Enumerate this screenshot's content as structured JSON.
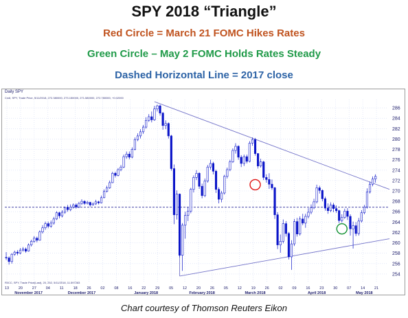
{
  "header": {
    "title": "SPY 2018 “Triangle”",
    "line1": "Red Circle = March 21 FOMC Hikes Rates",
    "line2": "Green Circle – May 2 FOMC Holds Rates Steady",
    "line3": "Dashed Horizontal Line = 2017 close"
  },
  "panel": {
    "label": "Daily SPY",
    "info": "Cndl, SPY, Trade Price, 5/11/2018, 272.380000, 273.150000, 271.580000, 272.780000, +0.02000",
    "footer": "Rl/CC, SPY, Trade Price(Last), 20, 252, 5/11/2018, 11.597283"
  },
  "credit": "Chart courtesy of Thomson Reuters Eikon",
  "colors": {
    "up": "#ffffff",
    "down": "#0a14c8",
    "wick": "#0a14c8",
    "trend": "#7272c8",
    "dashed": "#2a2a9a",
    "grid": "#cfd8f4",
    "red_circle": "#e01010",
    "green_circle": "#109030"
  },
  "chart_data": {
    "type": "candlestick",
    "y_ticks": [
      254,
      256,
      258,
      260,
      262,
      264,
      266,
      268,
      270,
      272,
      274,
      276,
      278,
      280,
      282,
      284,
      286
    ],
    "ylim": [
      252.4,
      287.6
    ],
    "x_day_labels": [
      "13",
      "20",
      "27",
      "04",
      "11",
      "18",
      "26",
      "02",
      "08",
      "16",
      "22",
      "29",
      "05",
      "12",
      "20",
      "26",
      "05",
      "12",
      "19",
      "26",
      "02",
      "09",
      "16",
      "23",
      "30",
      "07",
      "14",
      "21"
    ],
    "month_labels": [
      {
        "label": "November 2017",
        "index": 8
      },
      {
        "label": "December 2017",
        "index": 27
      },
      {
        "label": "January 2018",
        "index": 50
      },
      {
        "label": "February 2018",
        "index": 70
      },
      {
        "label": "March 2018",
        "index": 89
      },
      {
        "label": "April 2018",
        "index": 111
      },
      {
        "label": "May 2018",
        "index": 128
      }
    ],
    "candles": [
      [
        257.2,
        257.1,
        258.2,
        256.7
      ],
      [
        257.1,
        256.4,
        257.4,
        255.8
      ],
      [
        256.4,
        257.8,
        258.0,
        256.0
      ],
      [
        257.8,
        258.2,
        258.5,
        257.5
      ],
      [
        258.2,
        258.0,
        258.6,
        257.6
      ],
      [
        258.0,
        258.6,
        259.0,
        257.8
      ],
      [
        258.6,
        258.8,
        259.2,
        258.3
      ],
      [
        258.8,
        258.4,
        259.1,
        258.1
      ],
      [
        258.4,
        259.6,
        259.9,
        258.3
      ],
      [
        259.6,
        260.3,
        260.6,
        259.3
      ],
      [
        260.3,
        260.9,
        261.3,
        260.0
      ],
      [
        260.9,
        260.5,
        261.2,
        260.1
      ],
      [
        260.5,
        262.1,
        262.4,
        260.4
      ],
      [
        262.1,
        262.9,
        263.4,
        261.8
      ],
      [
        262.9,
        263.7,
        264.1,
        262.5
      ],
      [
        263.7,
        263.2,
        264.1,
        262.8
      ],
      [
        263.2,
        263.8,
        264.3,
        262.9
      ],
      [
        263.8,
        264.6,
        265.0,
        263.5
      ],
      [
        264.6,
        265.8,
        266.1,
        264.4
      ],
      [
        265.8,
        265.2,
        266.0,
        264.7
      ],
      [
        265.2,
        265.9,
        266.3,
        264.9
      ],
      [
        265.9,
        266.8,
        267.0,
        265.6
      ],
      [
        266.8,
        266.4,
        267.3,
        266.0
      ],
      [
        266.4,
        266.9,
        267.4,
        266.1
      ],
      [
        266.9,
        267.3,
        267.6,
        266.6
      ],
      [
        267.3,
        266.9,
        267.6,
        266.6
      ],
      [
        266.9,
        267.6,
        267.9,
        266.7
      ],
      [
        267.6,
        268.0,
        268.4,
        267.3
      ],
      [
        268.0,
        267.6,
        268.2,
        267.3
      ],
      [
        267.6,
        267.8,
        268.1,
        267.4
      ],
      [
        267.8,
        267.3,
        267.9,
        267.0
      ],
      [
        267.3,
        267.5,
        267.8,
        267.2
      ],
      [
        267.5,
        267.9,
        268.3,
        267.3
      ],
      [
        267.9,
        267.7,
        268.1,
        267.4
      ],
      [
        267.7,
        268.7,
        269.1,
        267.6
      ],
      [
        268.7,
        269.9,
        270.3,
        268.6
      ],
      [
        269.9,
        270.6,
        271.0,
        269.7
      ],
      [
        270.6,
        271.6,
        272.0,
        270.4
      ],
      [
        271.6,
        273.4,
        273.7,
        271.5
      ],
      [
        273.4,
        273.0,
        273.7,
        272.6
      ],
      [
        273.0,
        274.1,
        274.4,
        272.8
      ],
      [
        274.1,
        274.6,
        275.0,
        273.8
      ],
      [
        274.6,
        276.6,
        277.0,
        274.4
      ],
      [
        276.6,
        277.1,
        277.6,
        276.2
      ],
      [
        277.1,
        276.5,
        277.6,
        276.1
      ],
      [
        276.5,
        278.0,
        278.4,
        276.3
      ],
      [
        278.0,
        279.9,
        280.3,
        277.8
      ],
      [
        279.9,
        280.6,
        281.1,
        279.6
      ],
      [
        280.6,
        281.4,
        281.9,
        280.1
      ],
      [
        281.4,
        282.3,
        282.7,
        281.0
      ],
      [
        282.3,
        283.6,
        284.2,
        282.0
      ],
      [
        283.6,
        284.3,
        284.8,
        283.3
      ],
      [
        284.3,
        283.7,
        285.3,
        283.2
      ],
      [
        283.7,
        285.8,
        286.4,
        283.5
      ],
      [
        285.8,
        286.4,
        286.6,
        285.3
      ],
      [
        286.4,
        285.0,
        286.6,
        284.5
      ],
      [
        285.0,
        282.6,
        285.2,
        281.8
      ],
      [
        282.6,
        283.0,
        283.6,
        281.9
      ],
      [
        283.0,
        280.6,
        283.2,
        280.1
      ],
      [
        280.6,
        274.3,
        280.8,
        273.9
      ],
      [
        274.3,
        265.4,
        275.1,
        263.6
      ],
      [
        265.4,
        269.4,
        270.1,
        264.5
      ],
      [
        269.4,
        257.6,
        269.5,
        257.2
      ],
      [
        257.6,
        263.4,
        263.8,
        254.6
      ],
      [
        263.4,
        265.3,
        266.0,
        260.8
      ],
      [
        265.3,
        266.1,
        266.9,
        264.2
      ],
      [
        266.1,
        270.3,
        270.6,
        265.7
      ],
      [
        270.3,
        272.6,
        273.0,
        269.7
      ],
      [
        272.6,
        273.4,
        274.0,
        272.1
      ],
      [
        273.4,
        270.9,
        273.6,
        270.4
      ],
      [
        270.9,
        269.1,
        271.4,
        268.6
      ],
      [
        269.1,
        271.9,
        272.4,
        268.8
      ],
      [
        271.9,
        274.6,
        275.0,
        271.6
      ],
      [
        274.6,
        275.3,
        276.0,
        274.1
      ],
      [
        275.3,
        273.8,
        275.6,
        273.2
      ],
      [
        273.8,
        270.3,
        274.1,
        269.6
      ],
      [
        270.3,
        268.4,
        270.7,
        267.6
      ],
      [
        268.4,
        269.6,
        270.0,
        267.8
      ],
      [
        269.6,
        272.8,
        273.1,
        269.3
      ],
      [
        272.8,
        274.1,
        274.5,
        272.4
      ],
      [
        274.1,
        275.6,
        276.0,
        273.8
      ],
      [
        275.6,
        277.8,
        278.2,
        275.4
      ],
      [
        277.8,
        278.6,
        279.2,
        277.2
      ],
      [
        278.6,
        276.5,
        278.8,
        276.0
      ],
      [
        276.5,
        275.3,
        276.9,
        274.6
      ],
      [
        275.3,
        276.6,
        277.0,
        274.8
      ],
      [
        276.6,
        275.7,
        277.0,
        275.3
      ],
      [
        275.7,
        279.2,
        279.6,
        275.5
      ],
      [
        279.2,
        279.9,
        280.3,
        278.7
      ],
      [
        279.9,
        277.2,
        280.2,
        276.8
      ],
      [
        277.2,
        274.8,
        277.3,
        274.3
      ],
      [
        274.8,
        275.6,
        276.2,
        274.5
      ],
      [
        275.6,
        272.6,
        275.8,
        272.1
      ],
      [
        272.6,
        272.2,
        273.2,
        271.6
      ],
      [
        272.2,
        271.3,
        273.4,
        270.4
      ],
      [
        271.3,
        270.6,
        272.2,
        270.2
      ],
      [
        270.6,
        265.4,
        270.8,
        264.6
      ],
      [
        265.4,
        259.6,
        265.9,
        258.8
      ],
      [
        259.6,
        260.3,
        261.6,
        258.1
      ],
      [
        260.3,
        263.7,
        264.5,
        259.9
      ],
      [
        263.7,
        261.8,
        264.2,
        261.2
      ],
      [
        261.8,
        257.3,
        262.1,
        256.8
      ],
      [
        257.3,
        259.8,
        260.5,
        254.8
      ],
      [
        259.8,
        264.1,
        264.6,
        259.4
      ],
      [
        264.1,
        261.7,
        264.8,
        261.2
      ],
      [
        261.7,
        264.6,
        265.1,
        261.4
      ],
      [
        264.6,
        263.8,
        265.6,
        263.4
      ],
      [
        263.8,
        265.1,
        265.6,
        262.9
      ],
      [
        265.1,
        265.9,
        266.7,
        264.7
      ],
      [
        265.9,
        266.8,
        267.4,
        265.5
      ],
      [
        266.8,
        267.9,
        268.5,
        266.5
      ],
      [
        267.9,
        270.6,
        271.2,
        267.6
      ],
      [
        270.6,
        270.1,
        271.0,
        269.5
      ],
      [
        270.1,
        268.5,
        270.3,
        268.0
      ],
      [
        268.5,
        266.7,
        268.9,
        266.2
      ],
      [
        266.7,
        266.2,
        267.6,
        265.6
      ],
      [
        266.2,
        267.3,
        267.8,
        265.9
      ],
      [
        267.3,
        266.6,
        267.7,
        265.9
      ],
      [
        266.6,
        266.2,
        267.2,
        265.8
      ],
      [
        266.2,
        264.3,
        266.4,
        263.8
      ],
      [
        264.3,
        264.9,
        265.5,
        263.9
      ],
      [
        264.9,
        266.1,
        266.6,
        264.6
      ],
      [
        266.1,
        265.1,
        266.7,
        264.4
      ],
      [
        265.1,
        262.7,
        265.5,
        261.4
      ],
      [
        262.7,
        263.3,
        264.1,
        258.9
      ],
      [
        263.3,
        261.8,
        264.0,
        261.3
      ],
      [
        261.8,
        264.2,
        264.8,
        261.4
      ],
      [
        264.2,
        265.8,
        266.3,
        263.9
      ],
      [
        265.8,
        266.9,
        267.3,
        265.5
      ],
      [
        266.9,
        269.8,
        270.5,
        266.6
      ],
      [
        269.8,
        271.3,
        271.8,
        269.5
      ],
      [
        271.3,
        272.3,
        272.8,
        270.9
      ],
      [
        272.3,
        272.8,
        273.2,
        271.6
      ]
    ],
    "dashed_line_2017_close": 266.86,
    "trendlines": [
      {
        "name": "upper",
        "from": [
          53,
          287.2
        ],
        "to": [
          137,
          270.3
        ]
      },
      {
        "name": "lower",
        "from": [
          62,
          253.6
        ],
        "to": [
          137,
          260.8
        ]
      },
      {
        "name": "left",
        "from": [
          62,
          253.6
        ],
        "to": [
          62,
          259.0
        ]
      }
    ],
    "circles": [
      {
        "name": "red",
        "index": 89,
        "value": 271.2
      },
      {
        "name": "green",
        "index": 120,
        "value": 262.7
      }
    ]
  }
}
